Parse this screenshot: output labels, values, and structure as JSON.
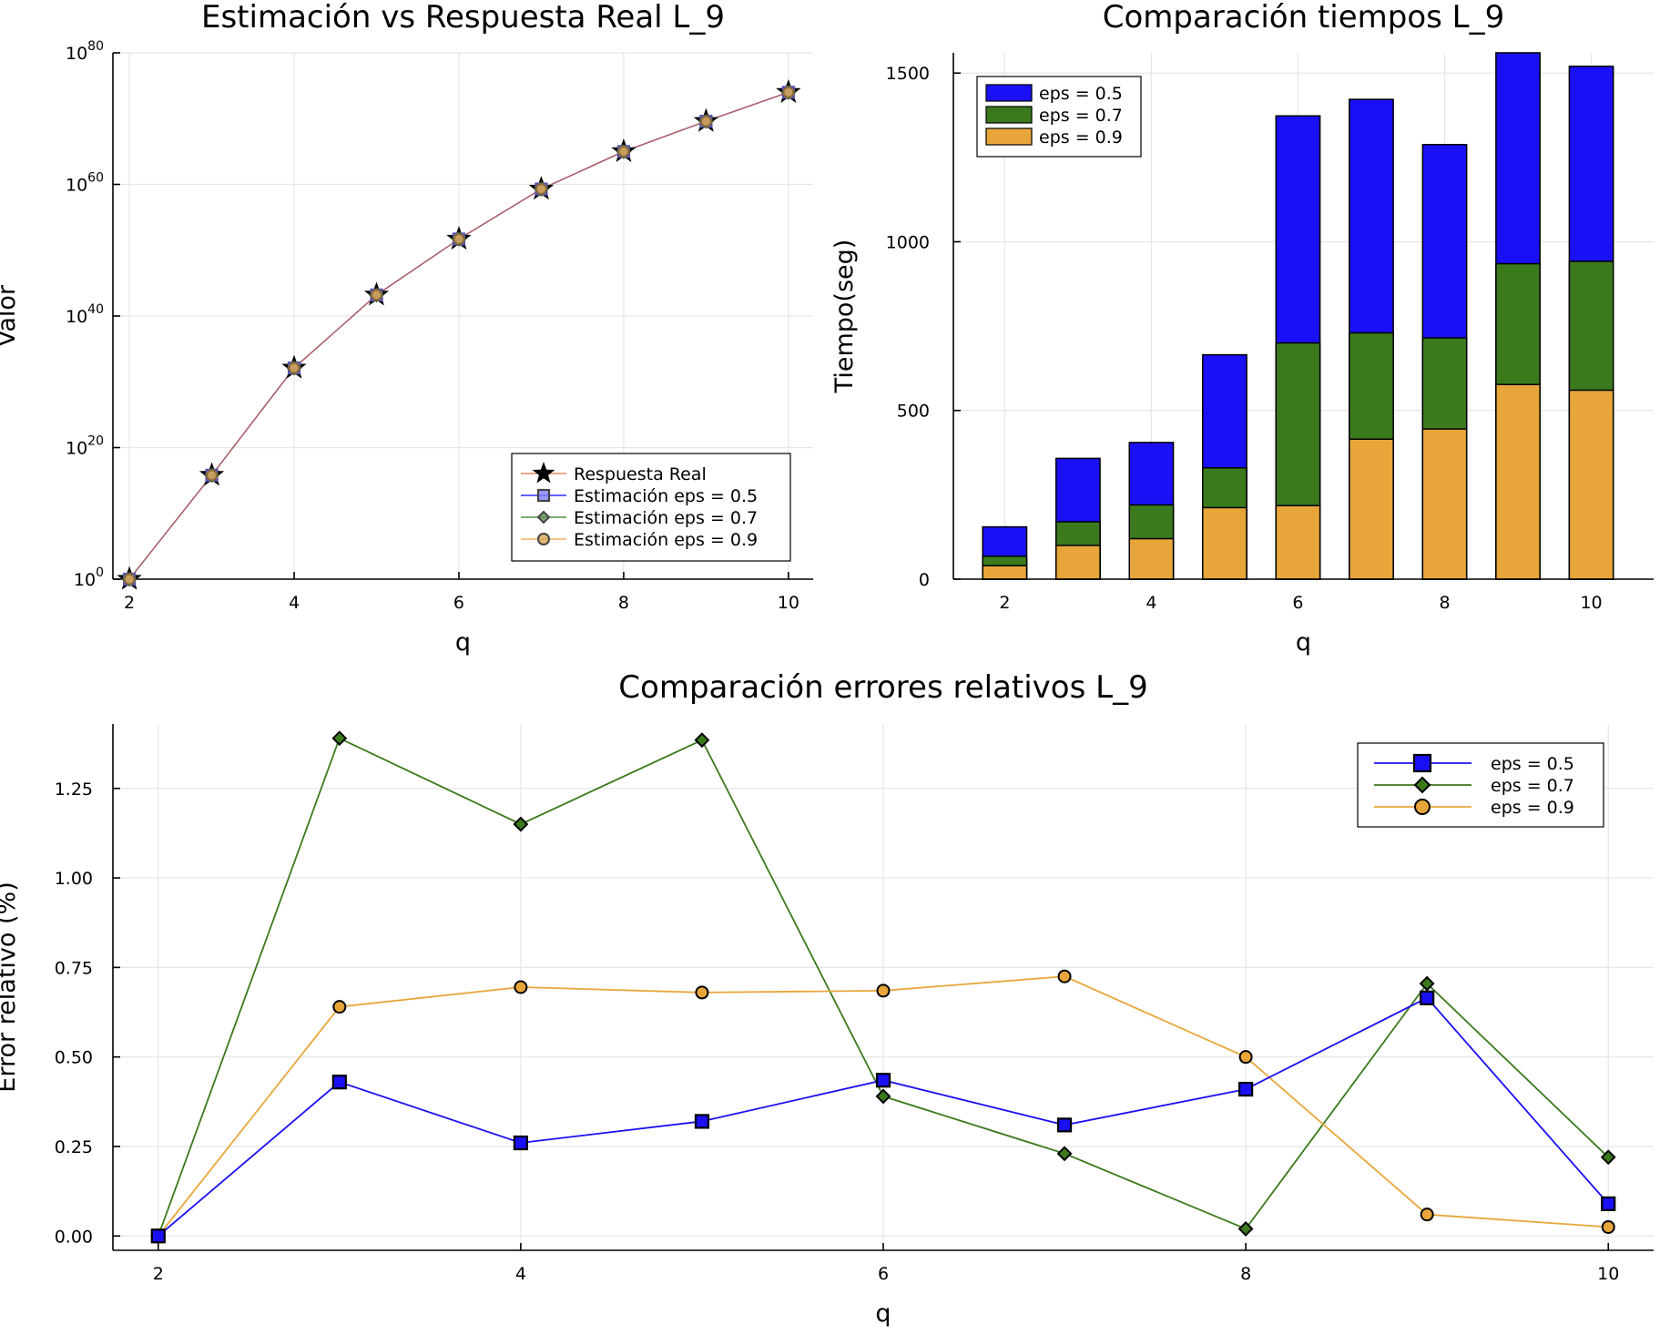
{
  "chart_data": [
    {
      "id": "estimation",
      "type": "line",
      "title": "Estimación vs Respuesta Real L_9",
      "xlabel": "q",
      "ylabel": "Valor",
      "yscale": "log10",
      "xlim": [
        1.8,
        10.3
      ],
      "ylim": [
        0,
        80
      ],
      "xticks": [
        2,
        4,
        6,
        8,
        10
      ],
      "yticks_exponents": [
        0,
        20,
        40,
        60,
        80
      ],
      "ytick_base": "10",
      "grid": true,
      "legend_position": "bottom-right",
      "x": [
        2,
        3,
        4,
        5,
        6,
        7,
        8,
        9,
        10
      ],
      "series": [
        {
          "name": "Respuesta Real",
          "marker": "star",
          "color": "#000000",
          "line_color": "#e26f46",
          "log10_values": [
            0,
            15.8,
            32.1,
            43.2,
            51.7,
            59.3,
            65.0,
            69.6,
            74.0
          ]
        },
        {
          "name": "Estimación eps = 0.5",
          "marker": "square",
          "color": "#8080ff",
          "line_color": "#0000ff",
          "log10_values": [
            0,
            15.8,
            32.1,
            43.2,
            51.7,
            59.3,
            65.0,
            69.6,
            74.0
          ]
        },
        {
          "name": "Estimación eps = 0.7",
          "marker": "diamond",
          "color": "#5f8f4f",
          "line_color": "#2a7a1a",
          "log10_values": [
            0,
            15.8,
            32.1,
            43.2,
            51.7,
            59.3,
            65.0,
            69.6,
            74.0
          ]
        },
        {
          "name": "Estimación eps = 0.9",
          "marker": "circle",
          "color": "#d9a55a",
          "line_color": "#e8a33d",
          "log10_values": [
            0,
            15.8,
            32.1,
            43.2,
            51.7,
            59.3,
            65.0,
            69.6,
            74.0
          ]
        }
      ]
    },
    {
      "id": "times",
      "type": "bar",
      "title": "Comparación tiempos L_9",
      "xlabel": "q",
      "ylabel": "Tiempo(seg)",
      "xlim": [
        1.3,
        10.85
      ],
      "ylim": [
        0,
        1560
      ],
      "xticks": [
        2,
        4,
        6,
        8,
        10
      ],
      "yticks": [
        0,
        500,
        1000,
        1500
      ],
      "grid": true,
      "legend_position": "top-left",
      "categories": [
        2,
        3,
        4,
        5,
        6,
        7,
        8,
        9,
        10
      ],
      "series": [
        {
          "name": "eps = 0.5",
          "color": "#1a10f5",
          "values": [
            155,
            358,
            405,
            665,
            1373,
            1422,
            1288,
            1560,
            1520
          ]
        },
        {
          "name": "eps = 0.7",
          "color": "#3b7a1c",
          "values": [
            68,
            170,
            220,
            330,
            700,
            730,
            715,
            935,
            942
          ]
        },
        {
          "name": "eps = 0.9",
          "color": "#e8a63a",
          "values": [
            40,
            100,
            120,
            212,
            218,
            415,
            445,
            577,
            560
          ]
        }
      ]
    },
    {
      "id": "errors",
      "type": "line",
      "title": "Comparación errores relativos L_9",
      "xlabel": "q",
      "ylabel": "Error relativo (%)",
      "xlim": [
        1.75,
        10.25
      ],
      "ylim": [
        -0.04,
        1.43
      ],
      "xticks": [
        2,
        4,
        6,
        8,
        10
      ],
      "ytick_labels": [
        "0.00",
        "0.25",
        "0.50",
        "0.75",
        "1.00",
        "1.25"
      ],
      "grid": true,
      "legend_position": "top-right",
      "x": [
        2,
        3,
        4,
        5,
        6,
        7,
        8,
        9,
        10
      ],
      "series": [
        {
          "name": "eps = 0.5",
          "marker": "square",
          "color": "#1a10f5",
          "values": [
            0.0,
            0.43,
            0.26,
            0.32,
            0.435,
            0.31,
            0.41,
            0.665,
            0.09
          ]
        },
        {
          "name": "eps = 0.7",
          "marker": "diamond",
          "color": "#3b7a1c",
          "values": [
            0.0,
            1.39,
            1.15,
            1.385,
            0.39,
            0.23,
            0.02,
            0.705,
            0.22
          ]
        },
        {
          "name": "eps = 0.9",
          "marker": "circle",
          "color": "#e8a63a",
          "values": [
            0.0,
            0.64,
            0.695,
            0.68,
            0.685,
            0.725,
            0.5,
            0.06,
            0.025
          ]
        }
      ]
    }
  ]
}
